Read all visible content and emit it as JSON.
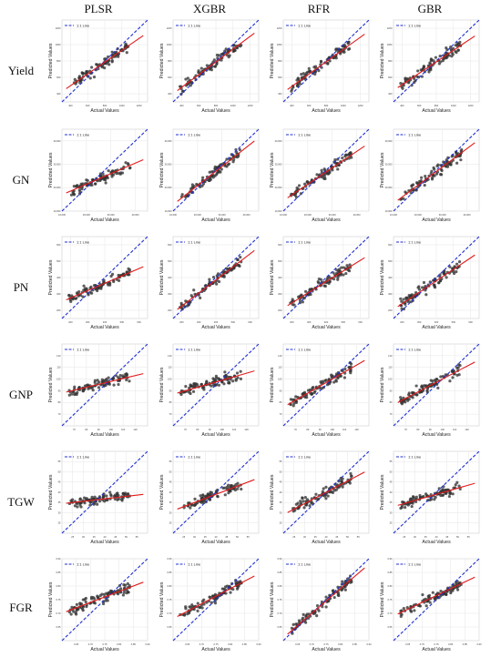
{
  "columns": [
    "PLSR",
    "XGBR",
    "RFR",
    "GBR"
  ],
  "rows": [
    "Yield",
    "GN",
    "PN",
    "GNP",
    "TGW",
    "FGR"
  ],
  "common": {
    "xlabel": "Actual Values",
    "ylabel": "Predicted Values",
    "legend_label": "1:1 Line",
    "legend_position": "top-left",
    "grid": true,
    "colors": {
      "identity": "#1f2fd1",
      "fit": "#e31a1c",
      "points": "#333333"
    }
  },
  "chart_data": [
    {
      "type": "scatter",
      "row": "Yield",
      "model": "PLSR",
      "xlim": [
        300,
        1300
      ],
      "ylim": [
        300,
        1300
      ],
      "x_ticks": [
        "400",
        "600",
        "800",
        "1000",
        "1200"
      ],
      "y_ticks": [
        "400",
        "600",
        "800",
        "1000",
        "1200"
      ],
      "fit": {
        "slope": 0.72,
        "intercept": 210
      }
    },
    {
      "type": "scatter",
      "row": "Yield",
      "model": "XGBR",
      "xlim": [
        300,
        1300
      ],
      "ylim": [
        300,
        1300
      ],
      "x_ticks": [
        "400",
        "600",
        "800",
        "1000",
        "1200"
      ],
      "y_ticks": [
        "400",
        "600",
        "800",
        "1000",
        "1200"
      ],
      "fit": {
        "slope": 0.78,
        "intercept": 165
      }
    },
    {
      "type": "scatter",
      "row": "Yield",
      "model": "RFR",
      "xlim": [
        300,
        1300
      ],
      "ylim": [
        300,
        1300
      ],
      "x_ticks": [
        "400",
        "600",
        "800",
        "1000",
        "1200"
      ],
      "y_ticks": [
        "400",
        "600",
        "800",
        "1000",
        "1200"
      ],
      "fit": {
        "slope": 0.75,
        "intercept": 190
      }
    },
    {
      "type": "scatter",
      "row": "Yield",
      "model": "GBR",
      "xlim": [
        300,
        1300
      ],
      "ylim": [
        300,
        1300
      ],
      "x_ticks": [
        "400",
        "600",
        "800",
        "1000",
        "1200"
      ],
      "y_ticks": [
        "400",
        "600",
        "800",
        "1000",
        "1200"
      ],
      "fit": {
        "slope": 0.7,
        "intercept": 230
      }
    },
    {
      "type": "scatter",
      "row": "GN",
      "model": "PLSR",
      "xlim": [
        10000,
        45000
      ],
      "ylim": [
        10000,
        45000
      ],
      "x_ticks": [
        "10,000",
        "20,000",
        "30,000",
        "40,000"
      ],
      "y_ticks": [
        "10,000",
        "20,000",
        "30,000",
        "40,000"
      ],
      "fit": {
        "slope": 0.45,
        "intercept": 12500
      }
    },
    {
      "type": "scatter",
      "row": "GN",
      "model": "XGBR",
      "xlim": [
        10000,
        45000
      ],
      "ylim": [
        10000,
        45000
      ],
      "x_ticks": [
        "10,000",
        "20,000",
        "30,000",
        "40,000"
      ],
      "y_ticks": [
        "10,000",
        "20,000",
        "30,000",
        "40,000"
      ],
      "fit": {
        "slope": 0.82,
        "intercept": 4500
      }
    },
    {
      "type": "scatter",
      "row": "GN",
      "model": "RFR",
      "xlim": [
        10000,
        45000
      ],
      "ylim": [
        10000,
        45000
      ],
      "x_ticks": [
        "10,000",
        "20,000",
        "30,000",
        "40,000"
      ],
      "y_ticks": [
        "10,000",
        "20,000",
        "30,000",
        "40,000"
      ],
      "fit": {
        "slope": 0.7,
        "intercept": 7500
      }
    },
    {
      "type": "scatter",
      "row": "GN",
      "model": "GBR",
      "xlim": [
        10000,
        45000
      ],
      "ylim": [
        10000,
        45000
      ],
      "x_ticks": [
        "10,000",
        "20,000",
        "30,000",
        "40,000"
      ],
      "y_ticks": [
        "10,000",
        "20,000",
        "30,000",
        "40,000"
      ],
      "fit": {
        "slope": 0.78,
        "intercept": 5500
      }
    },
    {
      "type": "scatter",
      "row": "PN",
      "model": "PLSR",
      "xlim": [
        150,
        650
      ],
      "ylim": [
        150,
        650
      ],
      "x_ticks": [
        "200",
        "300",
        "400",
        "500",
        "600"
      ],
      "y_ticks": [
        "200",
        "300",
        "400",
        "500",
        "600"
      ],
      "fit": {
        "slope": 0.45,
        "intercept": 185
      }
    },
    {
      "type": "scatter",
      "row": "PN",
      "model": "XGBR",
      "xlim": [
        150,
        650
      ],
      "ylim": [
        150,
        650
      ],
      "x_ticks": [
        "200",
        "300",
        "400",
        "500",
        "600"
      ],
      "y_ticks": [
        "200",
        "300",
        "400",
        "500",
        "600"
      ],
      "fit": {
        "slope": 0.8,
        "intercept": 65
      }
    },
    {
      "type": "scatter",
      "row": "PN",
      "model": "RFR",
      "xlim": [
        150,
        650
      ],
      "ylim": [
        150,
        650
      ],
      "x_ticks": [
        "200",
        "300",
        "400",
        "500",
        "600"
      ],
      "y_ticks": [
        "200",
        "300",
        "400",
        "500",
        "600"
      ],
      "fit": {
        "slope": 0.65,
        "intercept": 115
      }
    },
    {
      "type": "scatter",
      "row": "PN",
      "model": "GBR",
      "xlim": [
        150,
        650
      ],
      "ylim": [
        150,
        650
      ],
      "x_ticks": [
        "200",
        "300",
        "400",
        "500",
        "600"
      ],
      "y_ticks": [
        "200",
        "300",
        "400",
        "500",
        "600"
      ],
      "fit": {
        "slope": 0.7,
        "intercept": 100
      }
    },
    {
      "type": "scatter",
      "row": "GNP",
      "model": "PLSR",
      "xlim": [
        60,
        130
      ],
      "ylim": [
        60,
        130
      ],
      "x_ticks": [
        "70",
        "80",
        "90",
        "100",
        "110",
        "120"
      ],
      "y_ticks": [
        "70",
        "80",
        "90",
        "100",
        "110",
        "120"
      ],
      "fit": {
        "slope": 0.25,
        "intercept": 73
      }
    },
    {
      "type": "scatter",
      "row": "GNP",
      "model": "XGBR",
      "xlim": [
        60,
        130
      ],
      "ylim": [
        60,
        130
      ],
      "x_ticks": [
        "70",
        "80",
        "90",
        "100",
        "110",
        "120"
      ],
      "y_ticks": [
        "70",
        "80",
        "90",
        "100",
        "110",
        "120"
      ],
      "fit": {
        "slope": 0.3,
        "intercept": 69
      }
    },
    {
      "type": "scatter",
      "row": "GNP",
      "model": "RFR",
      "xlim": [
        60,
        130
      ],
      "ylim": [
        60,
        130
      ],
      "x_ticks": [
        "70",
        "80",
        "90",
        "100",
        "110",
        "120"
      ],
      "y_ticks": [
        "70",
        "80",
        "90",
        "100",
        "110",
        "120"
      ],
      "fit": {
        "slope": 0.6,
        "intercept": 40
      }
    },
    {
      "type": "scatter",
      "row": "GNP",
      "model": "GBR",
      "xlim": [
        60,
        130
      ],
      "ylim": [
        60,
        130
      ],
      "x_ticks": [
        "70",
        "80",
        "90",
        "100",
        "110",
        "120"
      ],
      "y_ticks": [
        "70",
        "80",
        "90",
        "100",
        "110",
        "120"
      ],
      "fit": {
        "slope": 0.55,
        "intercept": 45
      }
    },
    {
      "type": "scatter",
      "row": "TGW",
      "model": "PLSR",
      "xlim": [
        20,
        60
      ],
      "ylim": [
        20,
        60
      ],
      "x_ticks": [
        "25",
        "30",
        "35",
        "40",
        "45",
        "50",
        "55"
      ],
      "y_ticks": [
        "25",
        "30",
        "35",
        "40",
        "45",
        "50",
        "55"
      ],
      "fit": {
        "slope": 0.12,
        "intercept": 32
      }
    },
    {
      "type": "scatter",
      "row": "TGW",
      "model": "XGBR",
      "xlim": [
        20,
        60
      ],
      "ylim": [
        20,
        60
      ],
      "x_ticks": [
        "25",
        "30",
        "35",
        "40",
        "45",
        "50",
        "55"
      ],
      "y_ticks": [
        "25",
        "30",
        "35",
        "40",
        "45",
        "50",
        "55"
      ],
      "fit": {
        "slope": 0.4,
        "intercept": 23
      }
    },
    {
      "type": "scatter",
      "row": "TGW",
      "model": "RFR",
      "xlim": [
        20,
        60
      ],
      "ylim": [
        20,
        60
      ],
      "x_ticks": [
        "25",
        "30",
        "35",
        "40",
        "45",
        "50",
        "55"
      ],
      "y_ticks": [
        "25",
        "30",
        "35",
        "40",
        "45",
        "50",
        "55"
      ],
      "fit": {
        "slope": 0.55,
        "intercept": 18
      }
    },
    {
      "type": "scatter",
      "row": "TGW",
      "model": "GBR",
      "xlim": [
        20,
        60
      ],
      "ylim": [
        20,
        60
      ],
      "x_ticks": [
        "25",
        "30",
        "35",
        "40",
        "45",
        "50",
        "55"
      ],
      "y_ticks": [
        "25",
        "30",
        "35",
        "40",
        "45",
        "50",
        "55"
      ],
      "fit": {
        "slope": 0.3,
        "intercept": 27
      }
    },
    {
      "type": "scatter",
      "row": "FGR",
      "model": "PLSR",
      "xlim": [
        0.6,
        0.9
      ],
      "ylim": [
        0.6,
        0.9
      ],
      "x_ticks": [
        "0.65",
        "0.70",
        "0.75",
        "0.80",
        "0.85",
        "0.90"
      ],
      "y_ticks": [
        "0.65",
        "0.70",
        "0.75",
        "0.80",
        "0.85",
        "0.90"
      ],
      "fit": {
        "slope": 0.4,
        "intercept": 0.46
      }
    },
    {
      "type": "scatter",
      "row": "FGR",
      "model": "XGBR",
      "xlim": [
        0.6,
        0.9
      ],
      "ylim": [
        0.6,
        0.9
      ],
      "x_ticks": [
        "0.65",
        "0.70",
        "0.75",
        "0.80",
        "0.85",
        "0.90"
      ],
      "y_ticks": [
        "0.65",
        "0.70",
        "0.75",
        "0.80",
        "0.85",
        "0.90"
      ],
      "fit": {
        "slope": 0.55,
        "intercept": 0.35
      }
    },
    {
      "type": "scatter",
      "row": "FGR",
      "model": "RFR",
      "xlim": [
        0.6,
        0.9
      ],
      "ylim": [
        0.6,
        0.9
      ],
      "x_ticks": [
        "0.65",
        "0.70",
        "0.75",
        "0.80",
        "0.85",
        "0.90"
      ],
      "y_ticks": [
        "0.65",
        "0.70",
        "0.75",
        "0.80",
        "0.85",
        "0.90"
      ],
      "fit": {
        "slope": 0.9,
        "intercept": 0.07
      }
    },
    {
      "type": "scatter",
      "row": "FGR",
      "model": "GBR",
      "xlim": [
        0.6,
        0.9
      ],
      "ylim": [
        0.6,
        0.9
      ],
      "x_ticks": [
        "0.65",
        "0.70",
        "0.75",
        "0.80",
        "0.85",
        "0.90"
      ],
      "y_ticks": [
        "0.65",
        "0.70",
        "0.75",
        "0.80",
        "0.85",
        "0.90"
      ],
      "fit": {
        "slope": 0.5,
        "intercept": 0.39
      }
    }
  ]
}
